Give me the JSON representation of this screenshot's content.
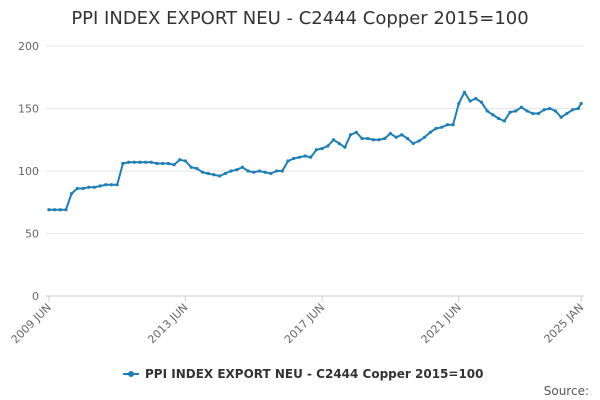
{
  "chart_data": {
    "type": "line",
    "title": "PPI INDEX EXPORT NEU - C2444 Copper 2015=100",
    "source_label": "Source:",
    "ylim": [
      0,
      200
    ],
    "y_ticks": [
      0,
      50,
      100,
      150,
      200
    ],
    "xlim": [
      "2009-05",
      "2025-02"
    ],
    "x_ticks": [
      {
        "label": "2009 JUN",
        "date": "2009-06"
      },
      {
        "label": "2013 JUN",
        "date": "2013-06"
      },
      {
        "label": "2017 JUN",
        "date": "2017-06"
      },
      {
        "label": "2021 JUN",
        "date": "2021-06"
      },
      {
        "label": "2025 JAN",
        "date": "2025-01"
      }
    ],
    "grid": true,
    "legend_position": "bottom",
    "colors": {
      "series": "#1f7fb4",
      "grid": "#e6e6e6",
      "axis": "#cccccc"
    },
    "series": [
      {
        "name": "PPI INDEX EXPORT NEU - C2444 Copper 2015=100",
        "x": [
          "2009-06",
          "2009-08",
          "2009-10",
          "2009-12",
          "2010-02",
          "2010-04",
          "2010-06",
          "2010-08",
          "2010-10",
          "2010-12",
          "2011-02",
          "2011-04",
          "2011-06",
          "2011-08",
          "2011-10",
          "2011-12",
          "2012-02",
          "2012-04",
          "2012-06",
          "2012-08",
          "2012-10",
          "2012-12",
          "2013-02",
          "2013-04",
          "2013-06",
          "2013-08",
          "2013-10",
          "2013-12",
          "2014-02",
          "2014-04",
          "2014-06",
          "2014-08",
          "2014-10",
          "2014-12",
          "2015-02",
          "2015-04",
          "2015-06",
          "2015-08",
          "2015-10",
          "2015-12",
          "2016-02",
          "2016-04",
          "2016-06",
          "2016-08",
          "2016-10",
          "2016-12",
          "2017-02",
          "2017-04",
          "2017-06",
          "2017-08",
          "2017-10",
          "2017-12",
          "2018-02",
          "2018-04",
          "2018-06",
          "2018-08",
          "2018-10",
          "2018-12",
          "2019-02",
          "2019-04",
          "2019-06",
          "2019-08",
          "2019-10",
          "2019-12",
          "2020-02",
          "2020-04",
          "2020-06",
          "2020-08",
          "2020-10",
          "2020-12",
          "2021-02",
          "2021-04",
          "2021-06",
          "2021-08",
          "2021-10",
          "2021-12",
          "2022-02",
          "2022-04",
          "2022-06",
          "2022-08",
          "2022-10",
          "2022-12",
          "2023-02",
          "2023-04",
          "2023-06",
          "2023-08",
          "2023-10",
          "2023-12",
          "2024-02",
          "2024-04",
          "2024-06",
          "2024-08",
          "2024-10",
          "2024-12",
          "2025-01"
        ],
        "values": [
          69,
          69,
          69,
          69,
          82,
          86,
          86,
          87,
          87,
          88,
          89,
          89,
          89,
          106,
          107,
          107,
          107,
          107,
          107,
          106,
          106,
          106,
          105,
          109,
          108,
          103,
          102,
          99,
          98,
          97,
          96,
          98,
          100,
          101,
          103,
          100,
          99,
          100,
          99,
          98,
          100,
          100,
          108,
          110,
          111,
          112,
          111,
          117,
          118,
          120,
          125,
          122,
          119,
          129,
          131,
          126,
          126,
          125,
          125,
          126,
          130,
          127,
          129,
          126,
          122,
          124,
          127,
          131,
          134,
          135,
          137,
          137,
          154,
          163,
          156,
          158,
          155,
          148,
          145,
          142,
          140,
          147,
          148,
          151,
          148,
          146,
          146,
          149,
          150,
          148,
          143,
          146,
          149,
          150,
          154
        ]
      }
    ]
  }
}
